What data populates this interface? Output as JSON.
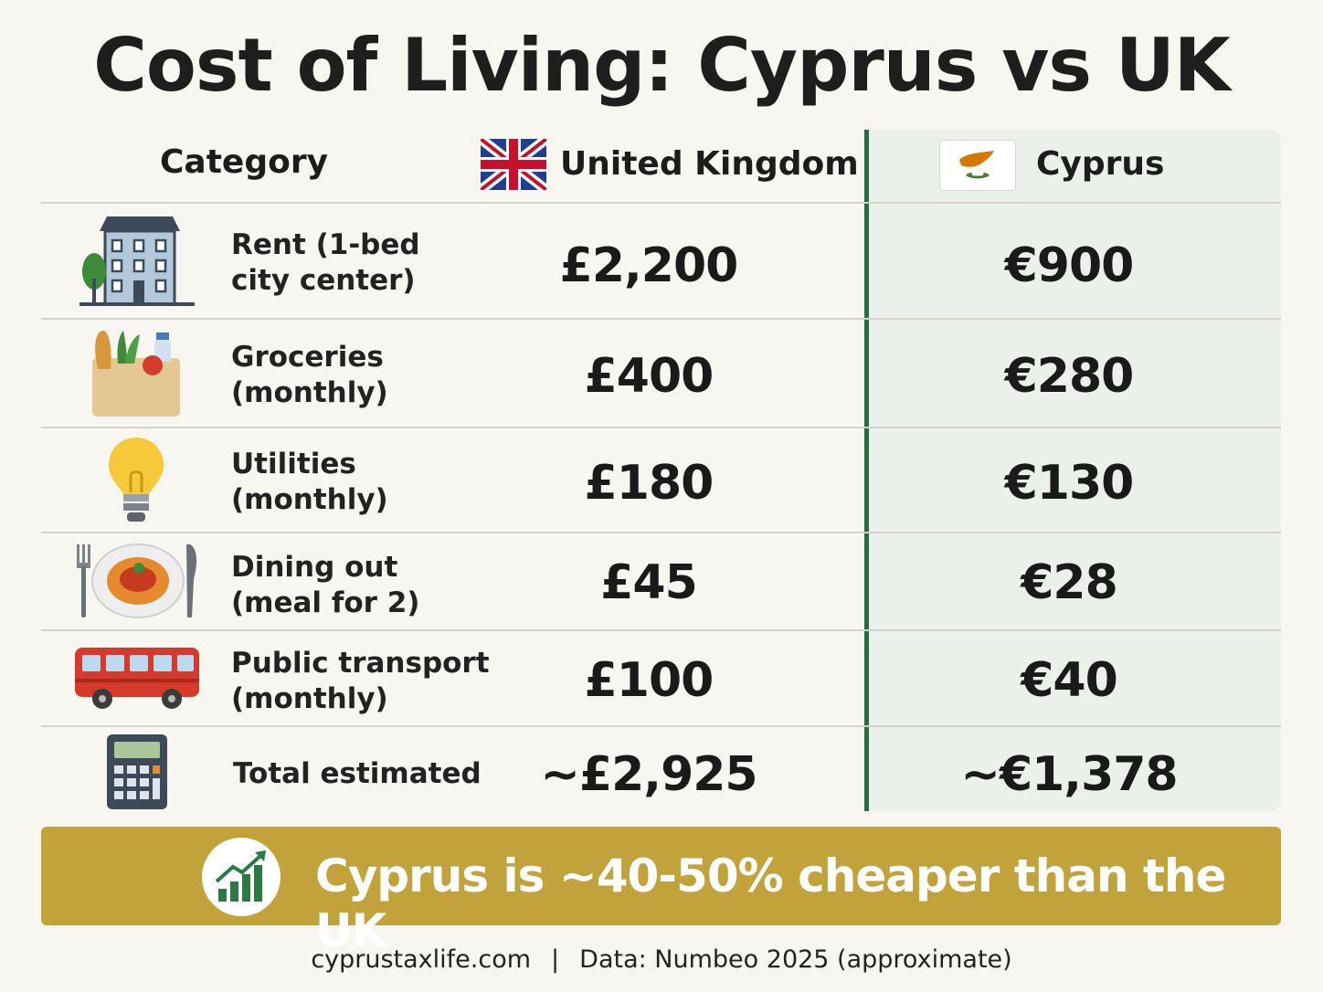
{
  "title": "Cost of Living: Cyprus vs UK",
  "headers": {
    "category": "Category",
    "uk": "United Kingdom",
    "cyprus": "Cyprus"
  },
  "rows": [
    {
      "icon": "apartment-building-icon",
      "label_line1": "Rent (1-bed",
      "label_line2": "city center)",
      "uk": "£2,200",
      "cyprus": "€900"
    },
    {
      "icon": "grocery-bag-icon",
      "label_line1": "Groceries",
      "label_line2": "(monthly)",
      "uk": "£400",
      "cyprus": "€280"
    },
    {
      "icon": "light-bulb-icon",
      "label_line1": "Utilities",
      "label_line2": "(monthly)",
      "uk": "£180",
      "cyprus": "€130"
    },
    {
      "icon": "plate-fork-knife-icon",
      "label_line1": "Dining out",
      "label_line2": "(meal for 2)",
      "uk": "£45",
      "cyprus": "€28"
    },
    {
      "icon": "bus-icon",
      "label_line1": "Public transport",
      "label_line2": "(monthly)",
      "uk": "£100",
      "cyprus": "€40"
    },
    {
      "icon": "calculator-icon",
      "label_line1": "Total estimated",
      "label_line2": "",
      "uk": "~£2,925",
      "cyprus": "~€1,378"
    }
  ],
  "banner": {
    "icon": "growth-chart-icon",
    "text": "Cyprus is ~40-50% cheaper than the UK"
  },
  "footer": {
    "site": "cyprustaxlife.com",
    "separator": "|",
    "source": "Data: Numbeo 2025 (approximate)"
  },
  "colors": {
    "background": "#f8f6f1",
    "cyprus_panel": "#ebf1ea",
    "divider_green": "#2a6b45",
    "banner_gold": "#c2a23a"
  }
}
